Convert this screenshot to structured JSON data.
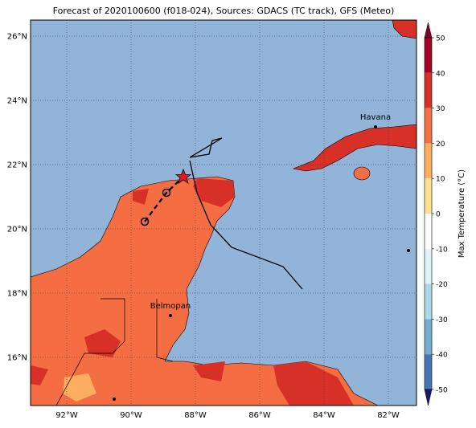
{
  "title": "Forecast of 2020100600 (f018-024), Sources: GDACS (TC track), GFS (Meteo)",
  "lat_labels": [
    "26°N",
    "24°N",
    "22°N",
    "20°N",
    "18°N",
    "16°N"
  ],
  "lon_labels": [
    "92°W",
    "90°W",
    "88°W",
    "86°W",
    "84°W",
    "82°W"
  ],
  "cities": [
    {
      "name": "Havana"
    },
    {
      "name": "Belmopan"
    }
  ],
  "colorbar": {
    "label": "Max Temperature (°C)",
    "ticks": [
      50,
      40,
      30,
      20,
      10,
      0,
      -10,
      -20,
      -30,
      -40,
      -50
    ]
  }
}
